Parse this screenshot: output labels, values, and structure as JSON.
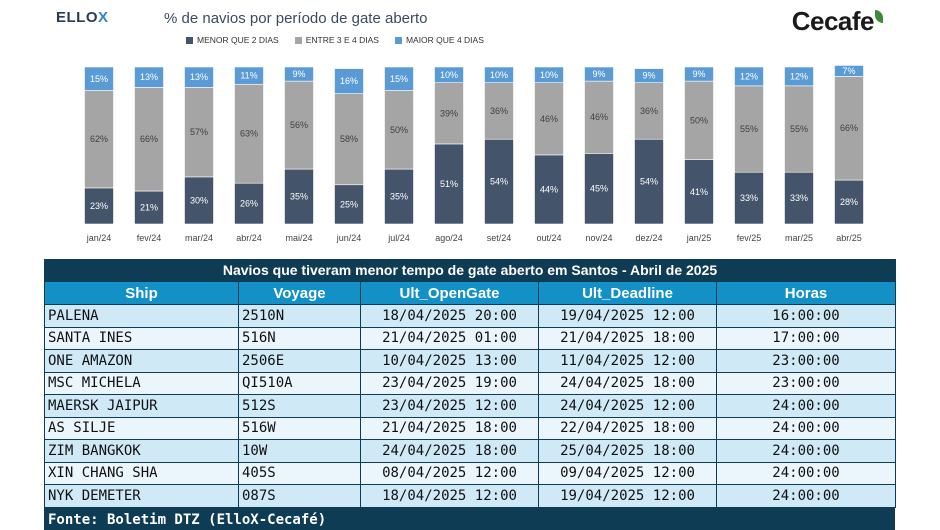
{
  "branding": {
    "ellox_text": "ELLO",
    "ellox_x": "X",
    "cecafe_text": "Cecafe"
  },
  "chart_data": {
    "type": "bar",
    "stacked": true,
    "title": "% de navios por período de gate aberto",
    "categories": [
      "jan/24",
      "fev/24",
      "mar/24",
      "abr/24",
      "mai/24",
      "jun/24",
      "jul/24",
      "ago/24",
      "set/24",
      "out/24",
      "nov/24",
      "dez/24",
      "jan/25",
      "fev/25",
      "mar/25",
      "abr/25"
    ],
    "series": [
      {
        "name": "MENOR QUE 2 DIAS",
        "color": "#44546a",
        "values": [
          23,
          21,
          30,
          26,
          35,
          25,
          35,
          51,
          54,
          44,
          45,
          54,
          41,
          33,
          33,
          28
        ]
      },
      {
        "name": "ENTRE 3 E 4 DIAS",
        "color": "#a5a5a5",
        "values": [
          62,
          66,
          57,
          63,
          56,
          58,
          50,
          39,
          36,
          46,
          46,
          36,
          50,
          55,
          55,
          66
        ]
      },
      {
        "name": "MAIOR QUE 4 DIAS",
        "color": "#5b9bd5",
        "values": [
          15,
          13,
          13,
          11,
          9,
          16,
          15,
          10,
          10,
          10,
          9,
          9,
          9,
          12,
          12,
          7
        ]
      }
    ],
    "ylim": [
      0,
      100
    ],
    "value_suffix": "%",
    "legend_position": "top",
    "grid": false
  },
  "table": {
    "title": "Navios que tiveram menor tempo de gate aberto em Santos - Abril de 2025",
    "headers": [
      "Ship",
      "Voyage",
      "Ult_OpenGate",
      "Ult_Deadline",
      "Horas"
    ],
    "rows": [
      [
        "PALENA",
        "2510N",
        "18/04/2025 20:00",
        "19/04/2025 12:00",
        "16:00:00"
      ],
      [
        "SANTA INES",
        "516N",
        "21/04/2025 01:00",
        "21/04/2025 18:00",
        "17:00:00"
      ],
      [
        "ONE AMAZON",
        "2506E",
        "10/04/2025 13:00",
        "11/04/2025 12:00",
        "23:00:00"
      ],
      [
        "MSC MICHELA",
        "QI510A",
        "23/04/2025 19:00",
        "24/04/2025 18:00",
        "23:00:00"
      ],
      [
        "MAERSK JAIPUR",
        "512S",
        "23/04/2025 12:00",
        "24/04/2025 12:00",
        "24:00:00"
      ],
      [
        "AS SILJE",
        "516W",
        "21/04/2025 18:00",
        "22/04/2025 18:00",
        "24:00:00"
      ],
      [
        "ZIM BANGKOK",
        "10W",
        "24/04/2025 18:00",
        "25/04/2025 18:00",
        "24:00:00"
      ],
      [
        "XIN CHANG SHA",
        "405S",
        "08/04/2025 12:00",
        "09/04/2025 12:00",
        "24:00:00"
      ],
      [
        "NYK DEMETER",
        "087S",
        "18/04/2025 12:00",
        "19/04/2025 12:00",
        "24:00:00"
      ]
    ],
    "footer": "Fonte: Boletim DTZ (ElloX-Cecafé)"
  }
}
